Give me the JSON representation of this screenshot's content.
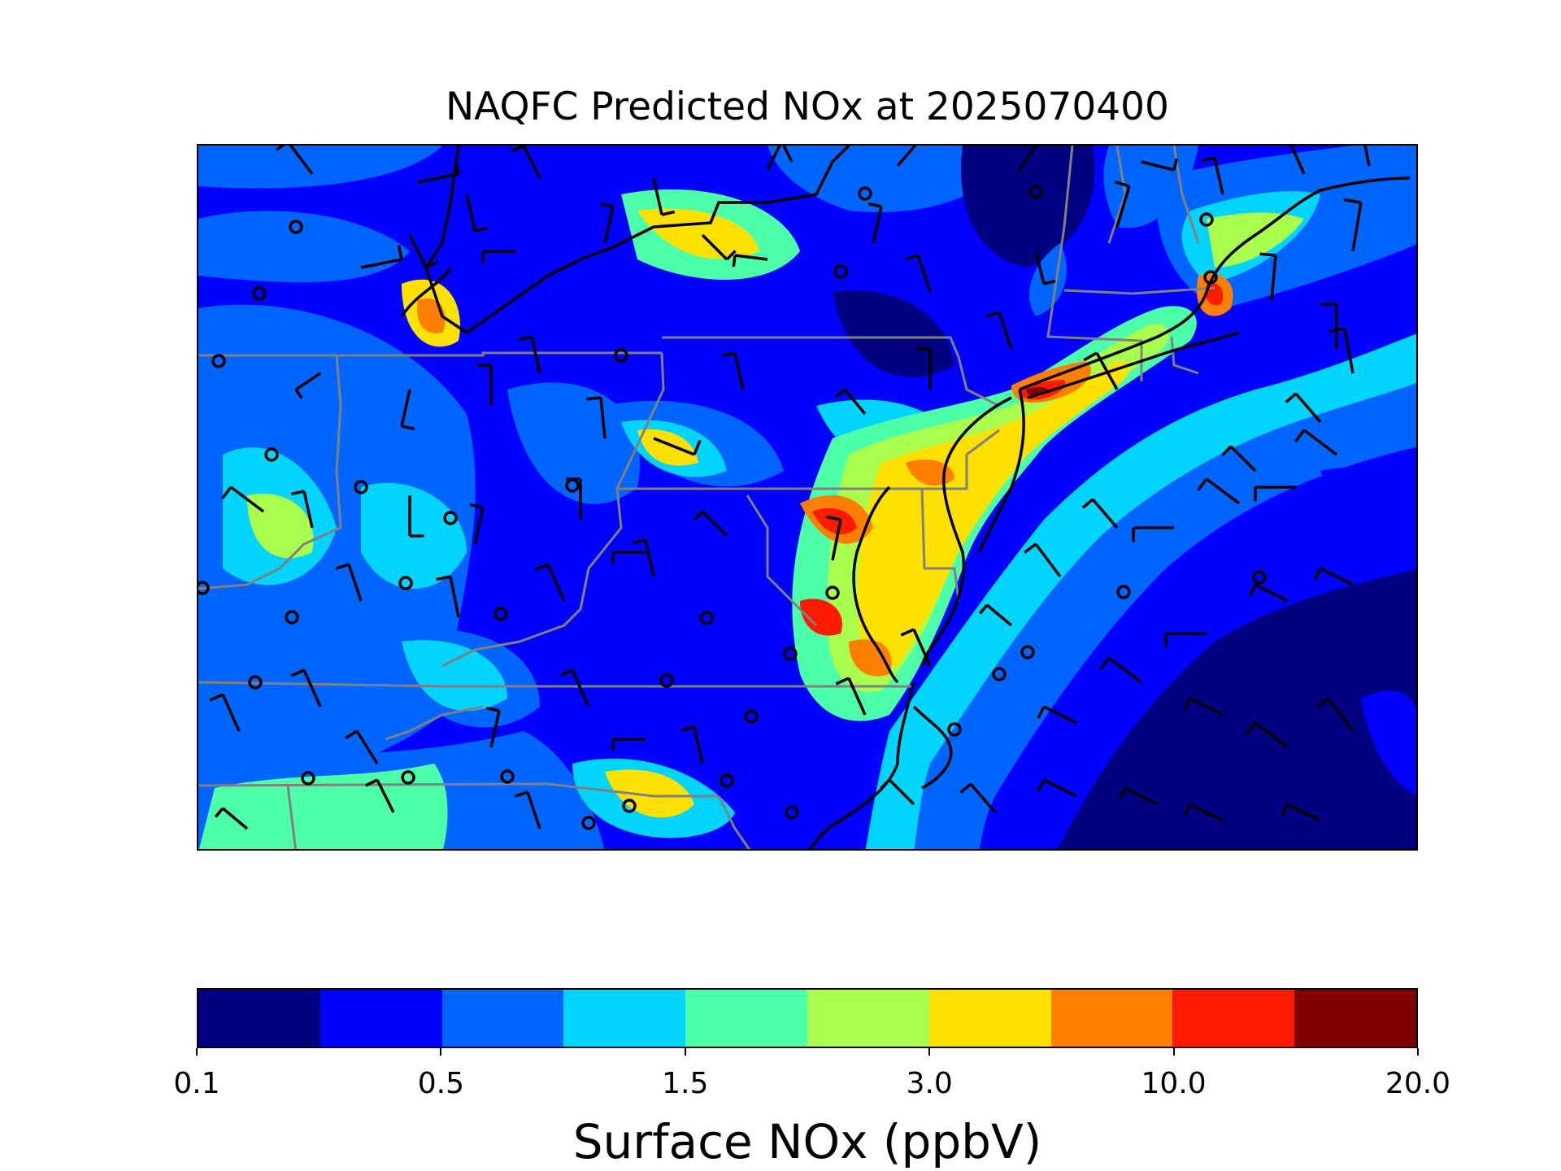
{
  "title": "NAQFC Predicted NOx at 2025070400",
  "colorbar": {
    "label": "Surface NOx (ppbV)",
    "colors": [
      "#000080",
      "#0000ff",
      "#0064ff",
      "#00d4ff",
      "#4effaa",
      "#aaff4e",
      "#ffe100",
      "#ff7f00",
      "#ff1a00",
      "#800000"
    ],
    "ticks": [
      "0.1",
      "0.5",
      "1.5",
      "3.0",
      "10.0",
      "20.0"
    ]
  },
  "map": {
    "background": "#0000ff",
    "coastline_color": "#000000",
    "state_border_color": "#808080",
    "symbols": [
      "wind-barb",
      "calm-wind-circle"
    ]
  }
}
